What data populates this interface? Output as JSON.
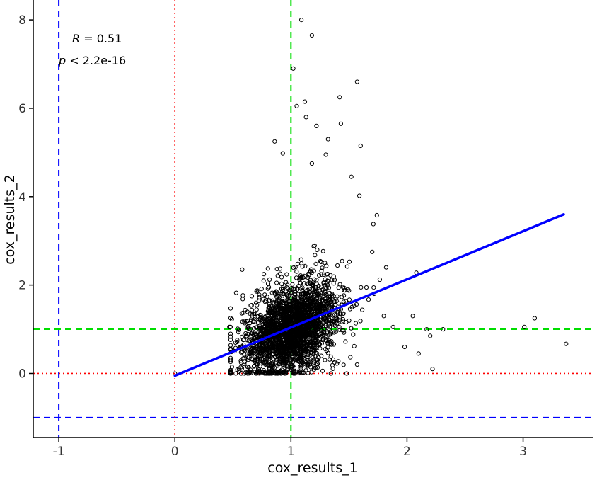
{
  "chart_data": {
    "type": "scatter",
    "title": "",
    "xlabel": "cox_results_1",
    "ylabel": "cox_results_2",
    "xlim": [
      -1.22,
      3.6
    ],
    "ylim": [
      -1.45,
      8.45
    ],
    "x_ticks": [
      -1,
      0,
      1,
      2,
      3
    ],
    "y_ticks": [
      0,
      2,
      4,
      6,
      8
    ],
    "x_tick_labels": [
      "-1",
      "0",
      "1",
      "2",
      "3"
    ],
    "y_tick_labels": [
      "0",
      "2",
      "4",
      "6",
      "8"
    ],
    "grid": false,
    "annotation": {
      "r_label": "R",
      "r_value": " = 0.51",
      "p_label": "p",
      "p_value": " < 2.2e-16"
    },
    "regression_line": {
      "x": [
        0.0,
        3.35
      ],
      "y": [
        -0.05,
        3.6
      ],
      "color": "#0000ff"
    },
    "reference_lines": [
      {
        "orientation": "vertical",
        "value": -1,
        "style": "dashed",
        "color": "#0000ff"
      },
      {
        "orientation": "horizontal",
        "value": -1,
        "style": "dashed",
        "color": "#0000ff"
      },
      {
        "orientation": "vertical",
        "value": 0,
        "style": "dotted",
        "color": "#ff0000"
      },
      {
        "orientation": "horizontal",
        "value": 0,
        "style": "dotted",
        "color": "#ff0000"
      },
      {
        "orientation": "vertical",
        "value": 1,
        "style": "dashed",
        "color": "#00dd00"
      },
      {
        "orientation": "horizontal",
        "value": 1,
        "style": "dashed",
        "color": "#00dd00"
      }
    ],
    "point_color": "#000000",
    "outlier_points": [
      {
        "x": 1.09,
        "y": 8.0
      },
      {
        "x": 1.18,
        "y": 7.65
      },
      {
        "x": 1.02,
        "y": 6.9
      },
      {
        "x": 1.57,
        "y": 6.6
      },
      {
        "x": 1.42,
        "y": 6.25
      },
      {
        "x": 1.12,
        "y": 6.15
      },
      {
        "x": 1.05,
        "y": 6.05
      },
      {
        "x": 1.13,
        "y": 5.8
      },
      {
        "x": 1.43,
        "y": 5.65
      },
      {
        "x": 1.22,
        "y": 5.6
      },
      {
        "x": 1.32,
        "y": 5.3
      },
      {
        "x": 0.86,
        "y": 5.25
      },
      {
        "x": 1.6,
        "y": 5.15
      },
      {
        "x": 0.93,
        "y": 4.98
      },
      {
        "x": 1.3,
        "y": 4.95
      },
      {
        "x": 1.18,
        "y": 4.75
      },
      {
        "x": 1.52,
        "y": 4.45
      },
      {
        "x": 1.59,
        "y": 4.02
      },
      {
        "x": 1.74,
        "y": 3.58
      },
      {
        "x": 1.71,
        "y": 3.38
      },
      {
        "x": 1.7,
        "y": 2.75
      },
      {
        "x": 1.82,
        "y": 2.4
      },
      {
        "x": 2.08,
        "y": 2.28
      },
      {
        "x": 2.05,
        "y": 1.3
      },
      {
        "x": 2.17,
        "y": 1.0
      },
      {
        "x": 2.31,
        "y": 1.0
      },
      {
        "x": 2.2,
        "y": 0.85
      },
      {
        "x": 2.1,
        "y": 0.45
      },
      {
        "x": 1.98,
        "y": 0.6
      },
      {
        "x": 2.22,
        "y": 0.1
      },
      {
        "x": 3.01,
        "y": 1.05
      },
      {
        "x": 3.1,
        "y": 1.25
      },
      {
        "x": 3.37,
        "y": 0.67
      },
      {
        "x": 0.47,
        "y": 1.05
      },
      {
        "x": 0.58,
        "y": 2.35
      },
      {
        "x": 0.0,
        "y": 0.0
      },
      {
        "x": 1.48,
        "y": 0.0
      },
      {
        "x": 1.57,
        "y": 0.2
      },
      {
        "x": 1.88,
        "y": 1.05
      },
      {
        "x": 1.8,
        "y": 1.3
      }
    ]
  }
}
